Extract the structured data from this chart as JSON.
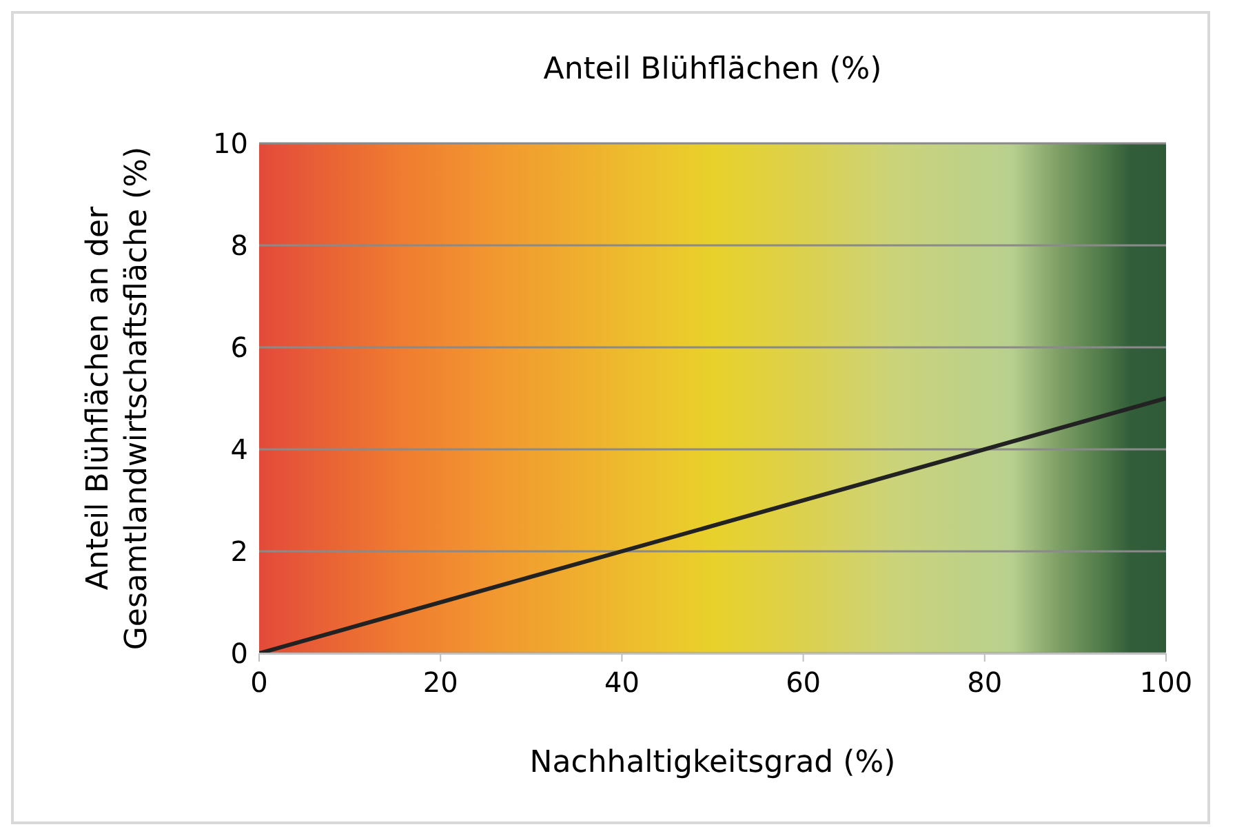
{
  "chart_data": {
    "type": "line",
    "title": "Anteil Blühflächen (%)",
    "xlabel": "Nachhaltigkeitsgrad (%)",
    "ylabel": "Anteil Blühflächen an der\nGesamtlandwirtschaftsfläche (%)",
    "x": [
      0,
      100
    ],
    "series": [
      {
        "color": "#222222",
        "values": [
          0,
          5
        ]
      }
    ],
    "xlim": [
      0,
      100
    ],
    "xticks": [
      0,
      20,
      40,
      60,
      80,
      100
    ],
    "ylim": [
      0,
      10
    ],
    "yticks": [
      0,
      2,
      4,
      6,
      8,
      10
    ],
    "grid": "y",
    "legend": false,
    "marker": "none",
    "line_style": "solid"
  }
}
